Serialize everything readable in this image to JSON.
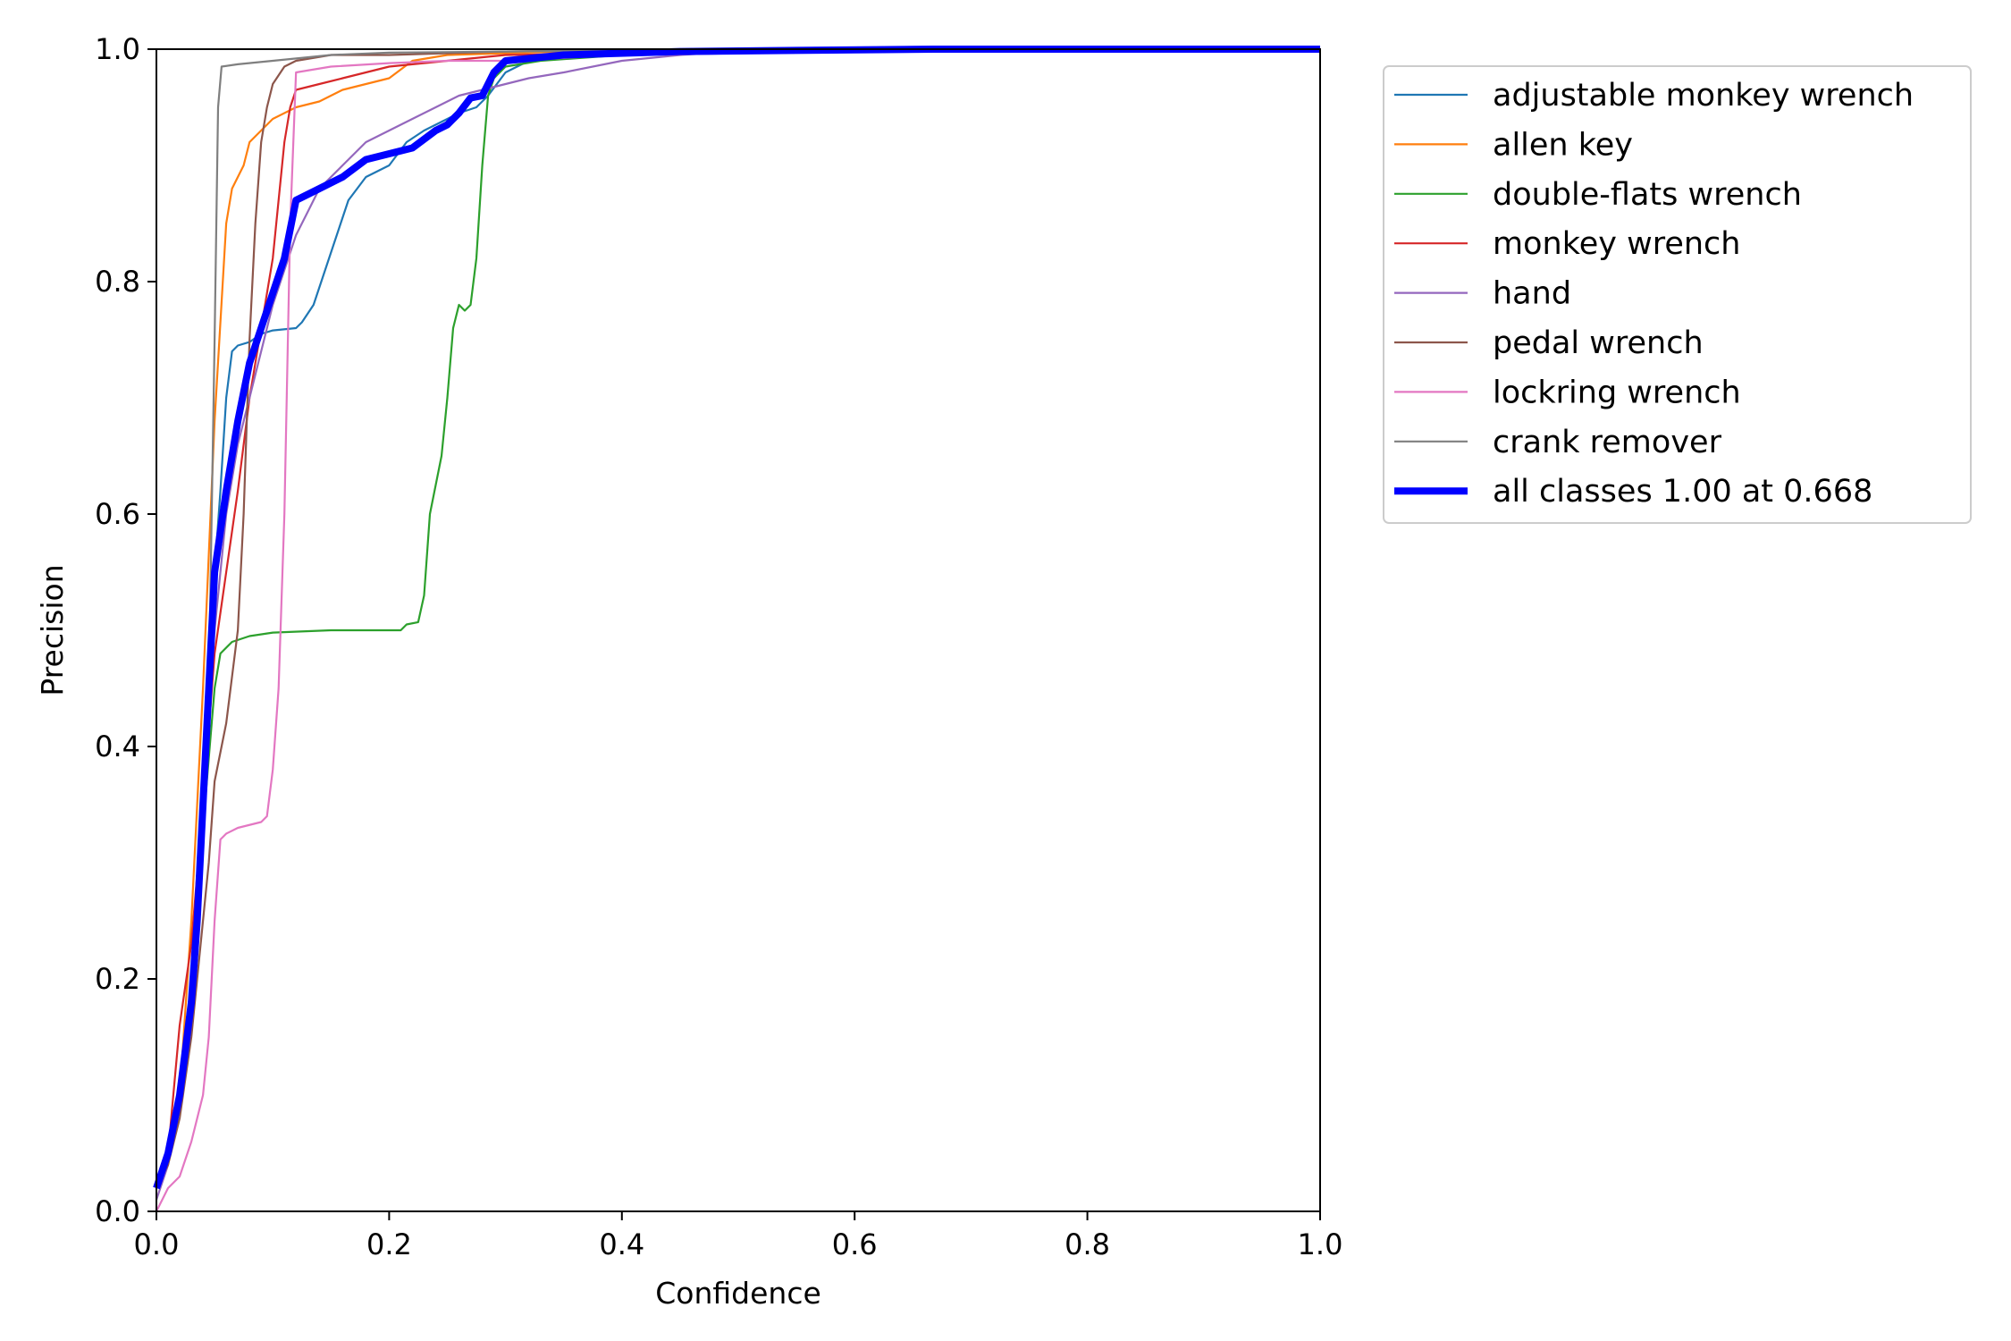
{
  "chart_data": {
    "type": "line",
    "xlabel": "Confidence",
    "ylabel": "Precision",
    "xlim": [
      0,
      1
    ],
    "ylim": [
      0,
      1
    ],
    "xticks": [
      "0.0",
      "0.2",
      "0.4",
      "0.6",
      "0.8",
      "1.0"
    ],
    "yticks": [
      "0.0",
      "0.2",
      "0.4",
      "0.6",
      "0.8",
      "1.0"
    ],
    "grid": false,
    "legend_position": "outside-top-right",
    "series": [
      {
        "name": "adjustable monkey wrench",
        "color": "#1f77b4",
        "points": [
          [
            0,
            0.02
          ],
          [
            0.01,
            0.05
          ],
          [
            0.02,
            0.1
          ],
          [
            0.03,
            0.2
          ],
          [
            0.04,
            0.38
          ],
          [
            0.05,
            0.55
          ],
          [
            0.055,
            0.62
          ],
          [
            0.06,
            0.7
          ],
          [
            0.065,
            0.74
          ],
          [
            0.07,
            0.745
          ],
          [
            0.08,
            0.748
          ],
          [
            0.09,
            0.755
          ],
          [
            0.1,
            0.758
          ],
          [
            0.12,
            0.76
          ],
          [
            0.125,
            0.765
          ],
          [
            0.135,
            0.78
          ],
          [
            0.145,
            0.81
          ],
          [
            0.155,
            0.84
          ],
          [
            0.165,
            0.87
          ],
          [
            0.18,
            0.89
          ],
          [
            0.2,
            0.9
          ],
          [
            0.215,
            0.92
          ],
          [
            0.23,
            0.93
          ],
          [
            0.26,
            0.945
          ],
          [
            0.275,
            0.95
          ],
          [
            0.285,
            0.96
          ],
          [
            0.3,
            0.98
          ],
          [
            0.32,
            0.99
          ],
          [
            0.4,
            0.995
          ],
          [
            0.6,
            0.998
          ],
          [
            0.8,
            1.0
          ],
          [
            1.0,
            1.0
          ]
        ]
      },
      {
        "name": "allen key",
        "color": "#ff7f0e",
        "points": [
          [
            0,
            0.02
          ],
          [
            0.01,
            0.05
          ],
          [
            0.02,
            0.1
          ],
          [
            0.03,
            0.25
          ],
          [
            0.04,
            0.45
          ],
          [
            0.05,
            0.68
          ],
          [
            0.06,
            0.85
          ],
          [
            0.065,
            0.88
          ],
          [
            0.075,
            0.9
          ],
          [
            0.08,
            0.92
          ],
          [
            0.09,
            0.93
          ],
          [
            0.1,
            0.94
          ],
          [
            0.12,
            0.95
          ],
          [
            0.14,
            0.955
          ],
          [
            0.16,
            0.965
          ],
          [
            0.2,
            0.975
          ],
          [
            0.22,
            0.99
          ],
          [
            0.25,
            0.995
          ],
          [
            0.35,
            0.998
          ],
          [
            0.6,
            1.0
          ],
          [
            1.0,
            1.0
          ]
        ]
      },
      {
        "name": "double-flats wrench",
        "color": "#2ca02c",
        "points": [
          [
            0,
            0.02
          ],
          [
            0.01,
            0.05
          ],
          [
            0.02,
            0.1
          ],
          [
            0.03,
            0.2
          ],
          [
            0.04,
            0.33
          ],
          [
            0.05,
            0.45
          ],
          [
            0.055,
            0.48
          ],
          [
            0.065,
            0.49
          ],
          [
            0.08,
            0.495
          ],
          [
            0.1,
            0.498
          ],
          [
            0.15,
            0.5
          ],
          [
            0.21,
            0.5
          ],
          [
            0.215,
            0.505
          ],
          [
            0.225,
            0.507
          ],
          [
            0.23,
            0.53
          ],
          [
            0.235,
            0.6
          ],
          [
            0.245,
            0.65
          ],
          [
            0.25,
            0.7
          ],
          [
            0.255,
            0.76
          ],
          [
            0.26,
            0.78
          ],
          [
            0.265,
            0.775
          ],
          [
            0.27,
            0.78
          ],
          [
            0.275,
            0.82
          ],
          [
            0.28,
            0.9
          ],
          [
            0.285,
            0.96
          ],
          [
            0.29,
            0.975
          ],
          [
            0.3,
            0.985
          ],
          [
            0.33,
            0.99
          ],
          [
            0.4,
            0.995
          ],
          [
            0.6,
            1.0
          ],
          [
            1.0,
            1.0
          ]
        ]
      },
      {
        "name": "monkey wrench",
        "color": "#d62728",
        "points": [
          [
            0,
            0.02
          ],
          [
            0.01,
            0.05
          ],
          [
            0.02,
            0.16
          ],
          [
            0.03,
            0.23
          ],
          [
            0.04,
            0.35
          ],
          [
            0.05,
            0.48
          ],
          [
            0.06,
            0.55
          ],
          [
            0.07,
            0.62
          ],
          [
            0.08,
            0.7
          ],
          [
            0.09,
            0.76
          ],
          [
            0.1,
            0.82
          ],
          [
            0.105,
            0.87
          ],
          [
            0.11,
            0.92
          ],
          [
            0.115,
            0.95
          ],
          [
            0.12,
            0.965
          ],
          [
            0.14,
            0.97
          ],
          [
            0.16,
            0.975
          ],
          [
            0.18,
            0.98
          ],
          [
            0.2,
            0.985
          ],
          [
            0.25,
            0.99
          ],
          [
            0.3,
            0.995
          ],
          [
            0.5,
            0.998
          ],
          [
            1.0,
            1.0
          ]
        ]
      },
      {
        "name": "hand",
        "color": "#9467bd",
        "points": [
          [
            0,
            0.01
          ],
          [
            0.01,
            0.04
          ],
          [
            0.02,
            0.1
          ],
          [
            0.03,
            0.2
          ],
          [
            0.04,
            0.35
          ],
          [
            0.05,
            0.5
          ],
          [
            0.06,
            0.6
          ],
          [
            0.07,
            0.66
          ],
          [
            0.08,
            0.7
          ],
          [
            0.09,
            0.74
          ],
          [
            0.1,
            0.78
          ],
          [
            0.11,
            0.81
          ],
          [
            0.12,
            0.84
          ],
          [
            0.13,
            0.86
          ],
          [
            0.14,
            0.88
          ],
          [
            0.16,
            0.9
          ],
          [
            0.18,
            0.92
          ],
          [
            0.2,
            0.93
          ],
          [
            0.22,
            0.94
          ],
          [
            0.24,
            0.95
          ],
          [
            0.26,
            0.96
          ],
          [
            0.28,
            0.965
          ],
          [
            0.3,
            0.97
          ],
          [
            0.32,
            0.975
          ],
          [
            0.35,
            0.98
          ],
          [
            0.4,
            0.99
          ],
          [
            0.45,
            0.995
          ],
          [
            0.5,
            0.998
          ],
          [
            0.6,
            1.0
          ],
          [
            1.0,
            1.0
          ]
        ]
      },
      {
        "name": "pedal wrench",
        "color": "#8c564b",
        "points": [
          [
            0,
            0.02
          ],
          [
            0.01,
            0.04
          ],
          [
            0.02,
            0.08
          ],
          [
            0.03,
            0.15
          ],
          [
            0.04,
            0.25
          ],
          [
            0.045,
            0.3
          ],
          [
            0.05,
            0.37
          ],
          [
            0.06,
            0.42
          ],
          [
            0.07,
            0.5
          ],
          [
            0.075,
            0.6
          ],
          [
            0.08,
            0.75
          ],
          [
            0.085,
            0.85
          ],
          [
            0.09,
            0.92
          ],
          [
            0.095,
            0.95
          ],
          [
            0.1,
            0.97
          ],
          [
            0.11,
            0.985
          ],
          [
            0.12,
            0.99
          ],
          [
            0.15,
            0.995
          ],
          [
            0.2,
            0.995
          ],
          [
            0.3,
            0.998
          ],
          [
            0.5,
            1.0
          ],
          [
            1.0,
            1.0
          ]
        ]
      },
      {
        "name": "lockring wrench",
        "color": "#e377c2",
        "points": [
          [
            0,
            0.0
          ],
          [
            0.005,
            0.01
          ],
          [
            0.01,
            0.02
          ],
          [
            0.02,
            0.03
          ],
          [
            0.03,
            0.06
          ],
          [
            0.04,
            0.1
          ],
          [
            0.045,
            0.15
          ],
          [
            0.05,
            0.25
          ],
          [
            0.055,
            0.32
          ],
          [
            0.06,
            0.325
          ],
          [
            0.07,
            0.33
          ],
          [
            0.09,
            0.335
          ],
          [
            0.095,
            0.34
          ],
          [
            0.1,
            0.38
          ],
          [
            0.105,
            0.45
          ],
          [
            0.11,
            0.6
          ],
          [
            0.115,
            0.85
          ],
          [
            0.12,
            0.98
          ],
          [
            0.15,
            0.985
          ],
          [
            0.2,
            0.988
          ],
          [
            0.25,
            0.99
          ],
          [
            0.3,
            0.99
          ],
          [
            0.4,
            0.995
          ],
          [
            0.6,
            0.998
          ],
          [
            1.0,
            1.0
          ]
        ]
      },
      {
        "name": "crank remover",
        "color": "#7f7f7f",
        "points": [
          [
            0,
            0.02
          ],
          [
            0.01,
            0.05
          ],
          [
            0.02,
            0.1
          ],
          [
            0.03,
            0.2
          ],
          [
            0.04,
            0.32
          ],
          [
            0.045,
            0.45
          ],
          [
            0.05,
            0.75
          ],
          [
            0.053,
            0.95
          ],
          [
            0.056,
            0.985
          ],
          [
            0.07,
            0.987
          ],
          [
            0.1,
            0.99
          ],
          [
            0.15,
            0.995
          ],
          [
            0.2,
            0.997
          ],
          [
            0.3,
            0.998
          ],
          [
            0.5,
            1.0
          ],
          [
            1.0,
            1.0
          ]
        ]
      },
      {
        "name": "all classes 1.00 at 0.668",
        "color": "#0000ff",
        "bold": true,
        "points": [
          [
            0,
            0.02
          ],
          [
            0.01,
            0.05
          ],
          [
            0.02,
            0.1
          ],
          [
            0.025,
            0.14
          ],
          [
            0.03,
            0.18
          ],
          [
            0.035,
            0.25
          ],
          [
            0.04,
            0.35
          ],
          [
            0.045,
            0.45
          ],
          [
            0.05,
            0.55
          ],
          [
            0.06,
            0.62
          ],
          [
            0.07,
            0.68
          ],
          [
            0.08,
            0.73
          ],
          [
            0.09,
            0.76
          ],
          [
            0.1,
            0.79
          ],
          [
            0.11,
            0.82
          ],
          [
            0.12,
            0.87
          ],
          [
            0.14,
            0.88
          ],
          [
            0.16,
            0.89
          ],
          [
            0.18,
            0.905
          ],
          [
            0.2,
            0.91
          ],
          [
            0.22,
            0.915
          ],
          [
            0.24,
            0.93
          ],
          [
            0.25,
            0.935
          ],
          [
            0.26,
            0.945
          ],
          [
            0.27,
            0.958
          ],
          [
            0.28,
            0.96
          ],
          [
            0.29,
            0.98
          ],
          [
            0.3,
            0.99
          ],
          [
            0.35,
            0.995
          ],
          [
            0.45,
            0.998
          ],
          [
            0.668,
            1.0
          ],
          [
            1.0,
            1.0
          ]
        ]
      }
    ]
  }
}
